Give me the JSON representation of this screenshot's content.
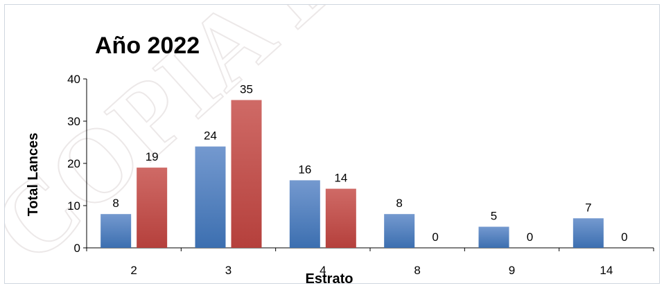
{
  "chart_data": {
    "type": "bar",
    "title": "Año 2022",
    "xlabel": "Estrato",
    "ylabel": "Total Lances",
    "categories": [
      "2",
      "3",
      "4",
      "8",
      "9",
      "14"
    ],
    "series": [
      {
        "color": "#4f81bd",
        "values": [
          8,
          24,
          16,
          8,
          5,
          7
        ]
      },
      {
        "color": "#c0504d",
        "values": [
          19,
          35,
          14,
          0,
          0,
          0
        ]
      }
    ],
    "ylim": [
      0,
      40
    ],
    "yticks": [
      0,
      10,
      20,
      30,
      40
    ],
    "grid": false,
    "legend": "none"
  },
  "watermark": {
    "text": "COPIA E"
  }
}
